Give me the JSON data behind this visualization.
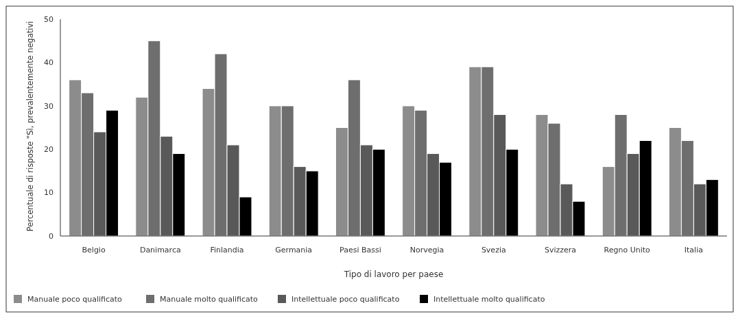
{
  "chart_data": {
    "type": "bar",
    "xlabel": "Tipo di lavoro per paese",
    "ylabel": "Percentuale di risposte \"Sì, prevalentemente negativi",
    "categories": [
      "Belgio",
      "Danimarca",
      "Finlandia",
      "Germania",
      "Paesi Bassi",
      "Norvegia",
      "Svezia",
      "Svizzera",
      "Regno Unito",
      "Italia"
    ],
    "series": [
      {
        "name": "Manuale poco qualificato",
        "color": "#8c8c8c",
        "values": [
          36,
          32,
          34,
          30,
          25,
          30,
          39,
          28,
          16,
          25
        ]
      },
      {
        "name": "Manuale molto qualificato",
        "color": "#6e6e6e",
        "values": [
          33,
          45,
          42,
          30,
          36,
          29,
          39,
          26,
          28,
          22
        ]
      },
      {
        "name": "Intellettuale poco qualificato",
        "color": "#595959",
        "values": [
          24,
          23,
          21,
          16,
          21,
          19,
          28,
          12,
          19,
          12
        ]
      },
      {
        "name": "Intellettuale molto qualificato",
        "color": "#000000",
        "values": [
          29,
          19,
          9,
          15,
          20,
          17,
          20,
          8,
          22,
          13
        ]
      }
    ],
    "ylim": [
      0,
      50
    ],
    "yticks": [
      0,
      10,
      20,
      30,
      40,
      50
    ],
    "grid": false,
    "legend": "bottom"
  }
}
